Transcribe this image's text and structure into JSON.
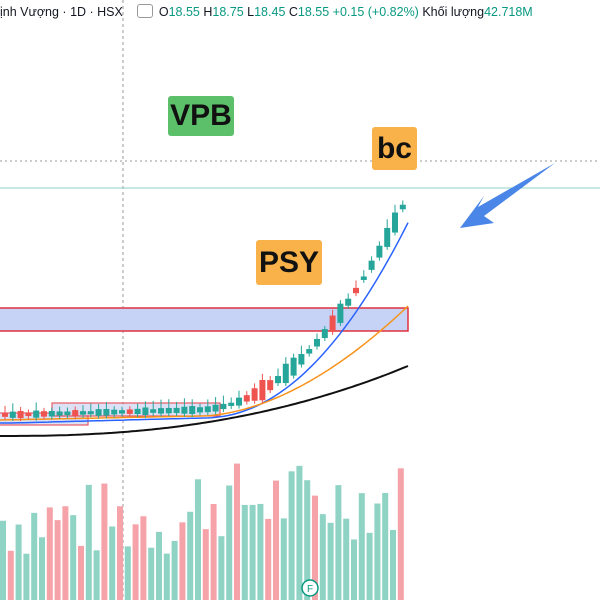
{
  "header": {
    "title": "ịnh Vượng · 1D · HSX",
    "fields": [
      {
        "label": "O",
        "value": "18.55"
      },
      {
        "label": "H",
        "value": "18.75"
      },
      {
        "label": "L",
        "value": "18.45"
      },
      {
        "label": "C",
        "value": "18.55"
      }
    ],
    "change": "+0.15 (+0.82%)",
    "volume_label": "Khối lượng",
    "volume": "42.718M"
  },
  "annotations": [
    {
      "text": "VPB"
    },
    {
      "text": "bc"
    },
    {
      "text": "PSY"
    }
  ],
  "footer": {
    "badge": "F"
  }
}
